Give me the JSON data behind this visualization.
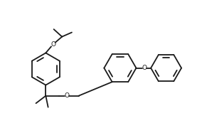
{
  "bg_color": "#ffffff",
  "line_color": "#1a1a1a",
  "line_width": 1.3,
  "figsize": [
    2.91,
    1.94
  ],
  "dpi": 100,
  "xlim": [
    0,
    10.5
  ],
  "ylim": [
    0,
    7.0
  ]
}
